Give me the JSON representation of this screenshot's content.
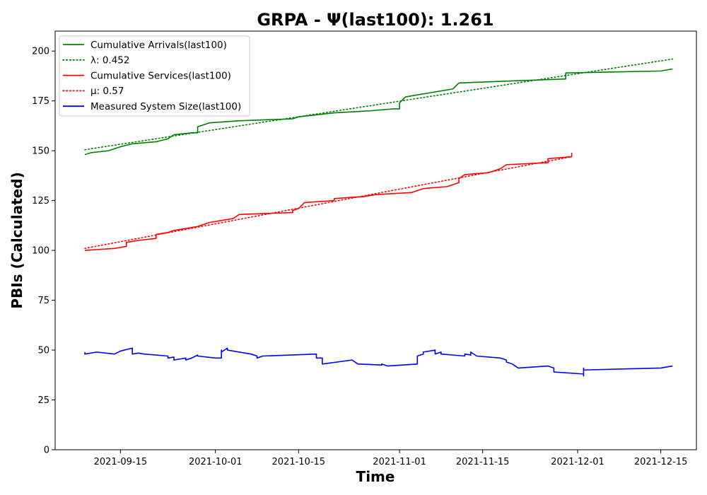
{
  "chart_data": {
    "type": "line",
    "title": "GRPA -  Ψ(last100): 1.261",
    "xlabel": "Time",
    "ylabel": "PBIs (Calculated)",
    "x_range": [
      "2021-09-04",
      "2021-12-21"
    ],
    "ylim": [
      0,
      210
    ],
    "y_ticks": [
      0,
      25,
      50,
      75,
      100,
      125,
      150,
      175,
      200
    ],
    "x_ticks": [
      "2021-09-15",
      "2021-10-01",
      "2021-10-15",
      "2021-11-01",
      "2021-11-15",
      "2021-12-01",
      "2021-12-15"
    ],
    "grid": false,
    "legend_position": "upper-left",
    "series": [
      {
        "name": "Cumulative Arrivals(last100)",
        "color": "#008000",
        "style": "solid",
        "points": [
          [
            "2021-09-09",
            148
          ],
          [
            "2021-09-10",
            149
          ],
          [
            "2021-09-13",
            150
          ],
          [
            "2021-09-15",
            152
          ],
          [
            "2021-09-17",
            153.5
          ],
          [
            "2021-09-21",
            154.5
          ],
          [
            "2021-09-23",
            156
          ],
          [
            "2021-09-24",
            158
          ],
          [
            "2021-09-27",
            159
          ],
          [
            "2021-09-28",
            159
          ],
          [
            "2021-09-28",
            162
          ],
          [
            "2021-09-29",
            163
          ],
          [
            "2021-09-30",
            164
          ],
          [
            "2021-10-05",
            165
          ],
          [
            "2021-10-14",
            166
          ],
          [
            "2021-10-15",
            167
          ],
          [
            "2021-10-18",
            168
          ],
          [
            "2021-10-21",
            169
          ],
          [
            "2021-10-27",
            170
          ],
          [
            "2021-10-31",
            171
          ],
          [
            "2021-11-01",
            171
          ],
          [
            "2021-11-01",
            174
          ],
          [
            "2021-11-02",
            177
          ],
          [
            "2021-11-04",
            178
          ],
          [
            "2021-11-06",
            179
          ],
          [
            "2021-11-08",
            180
          ],
          [
            "2021-11-10",
            181
          ],
          [
            "2021-11-11",
            184
          ],
          [
            "2021-11-20",
            185
          ],
          [
            "2021-11-29",
            186
          ],
          [
            "2021-11-29",
            189
          ],
          [
            "2021-12-15",
            190
          ],
          [
            "2021-12-17",
            191
          ]
        ]
      },
      {
        "name": "λ: 0.452",
        "color": "#008000",
        "style": "dotted",
        "points": [
          [
            "2021-09-09",
            150.5
          ],
          [
            "2021-12-17",
            196
          ]
        ]
      },
      {
        "name": "Cumulative Services(last100)",
        "color": "#ff0000",
        "style": "solid",
        "points": [
          [
            "2021-09-09",
            100
          ],
          [
            "2021-09-14",
            101
          ],
          [
            "2021-09-16",
            102
          ],
          [
            "2021-09-16",
            104
          ],
          [
            "2021-09-18",
            105
          ],
          [
            "2021-09-21",
            106
          ],
          [
            "2021-09-21",
            108
          ],
          [
            "2021-09-23",
            109
          ],
          [
            "2021-09-24",
            110
          ],
          [
            "2021-09-28",
            112
          ],
          [
            "2021-09-30",
            114
          ],
          [
            "2021-10-02",
            115
          ],
          [
            "2021-10-04",
            116
          ],
          [
            "2021-10-05",
            118
          ],
          [
            "2021-10-14",
            119
          ],
          [
            "2021-10-14",
            120
          ],
          [
            "2021-10-15",
            121
          ],
          [
            "2021-10-16",
            124
          ],
          [
            "2021-10-21",
            125
          ],
          [
            "2021-10-21",
            126
          ],
          [
            "2021-10-26",
            127
          ],
          [
            "2021-10-28",
            128
          ],
          [
            "2021-11-03",
            129
          ],
          [
            "2021-11-05",
            131
          ],
          [
            "2021-11-09",
            132
          ],
          [
            "2021-11-11",
            134
          ],
          [
            "2021-11-11",
            136
          ],
          [
            "2021-11-12",
            138
          ],
          [
            "2021-11-16",
            139
          ],
          [
            "2021-11-17",
            140
          ],
          [
            "2021-11-18",
            141
          ],
          [
            "2021-11-19",
            143
          ],
          [
            "2021-11-26",
            144
          ],
          [
            "2021-11-26",
            146
          ],
          [
            "2021-11-30",
            147
          ],
          [
            "2021-11-30",
            149
          ]
        ]
      },
      {
        "name": "μ: 0.57",
        "color": "#ff0000",
        "style": "dotted",
        "points": [
          [
            "2021-09-09",
            101
          ],
          [
            "2021-11-30",
            147
          ]
        ]
      },
      {
        "name": "Measured System Size(last100)",
        "color": "#0000ff",
        "style": "solid",
        "points": [
          [
            "2021-09-09",
            49
          ],
          [
            "2021-09-09",
            48
          ],
          [
            "2021-09-11",
            49
          ],
          [
            "2021-09-14",
            48
          ],
          [
            "2021-09-15",
            49.5
          ],
          [
            "2021-09-17",
            51
          ],
          [
            "2021-09-17",
            48
          ],
          [
            "2021-09-18",
            48.5
          ],
          [
            "2021-09-19",
            48
          ],
          [
            "2021-09-23",
            47
          ],
          [
            "2021-09-23",
            46
          ],
          [
            "2021-09-24",
            46.5
          ],
          [
            "2021-09-24",
            45
          ],
          [
            "2021-09-26",
            46
          ],
          [
            "2021-09-26",
            45
          ],
          [
            "2021-09-27",
            46
          ],
          [
            "2021-09-28",
            47.5
          ],
          [
            "2021-09-28",
            47
          ],
          [
            "2021-10-01",
            46
          ],
          [
            "2021-10-02",
            46
          ],
          [
            "2021-10-02",
            50
          ],
          [
            "2021-10-02",
            49
          ],
          [
            "2021-10-03",
            51
          ],
          [
            "2021-10-03",
            50
          ],
          [
            "2021-10-07",
            48
          ],
          [
            "2021-10-08",
            47
          ],
          [
            "2021-10-08",
            46
          ],
          [
            "2021-10-09",
            47
          ],
          [
            "2021-10-18",
            48
          ],
          [
            "2021-10-18",
            46
          ],
          [
            "2021-10-19",
            46
          ],
          [
            "2021-10-19",
            43
          ],
          [
            "2021-10-24",
            45
          ],
          [
            "2021-10-25",
            43
          ],
          [
            "2021-10-29",
            42.5
          ],
          [
            "2021-10-29",
            43
          ],
          [
            "2021-10-30",
            42
          ],
          [
            "2021-11-04",
            43
          ],
          [
            "2021-11-04",
            47
          ],
          [
            "2021-11-05",
            48
          ],
          [
            "2021-11-05",
            49
          ],
          [
            "2021-11-07",
            50
          ],
          [
            "2021-11-07",
            48
          ],
          [
            "2021-11-08",
            49
          ],
          [
            "2021-11-08",
            48
          ],
          [
            "2021-11-12",
            47
          ],
          [
            "2021-11-12",
            48
          ],
          [
            "2021-11-13",
            47.5
          ],
          [
            "2021-11-13",
            49
          ],
          [
            "2021-11-14",
            47
          ],
          [
            "2021-11-18",
            46
          ],
          [
            "2021-11-19",
            45
          ],
          [
            "2021-11-19",
            44
          ],
          [
            "2021-11-20",
            43
          ],
          [
            "2021-11-21",
            41
          ],
          [
            "2021-11-26",
            42
          ],
          [
            "2021-11-27",
            41
          ],
          [
            "2021-11-27",
            39
          ],
          [
            "2021-12-02",
            38
          ],
          [
            "2021-12-02",
            37
          ],
          [
            "2021-12-02",
            41
          ],
          [
            "2021-12-02",
            40
          ],
          [
            "2021-12-15",
            41
          ],
          [
            "2021-12-17",
            42
          ]
        ]
      }
    ]
  }
}
